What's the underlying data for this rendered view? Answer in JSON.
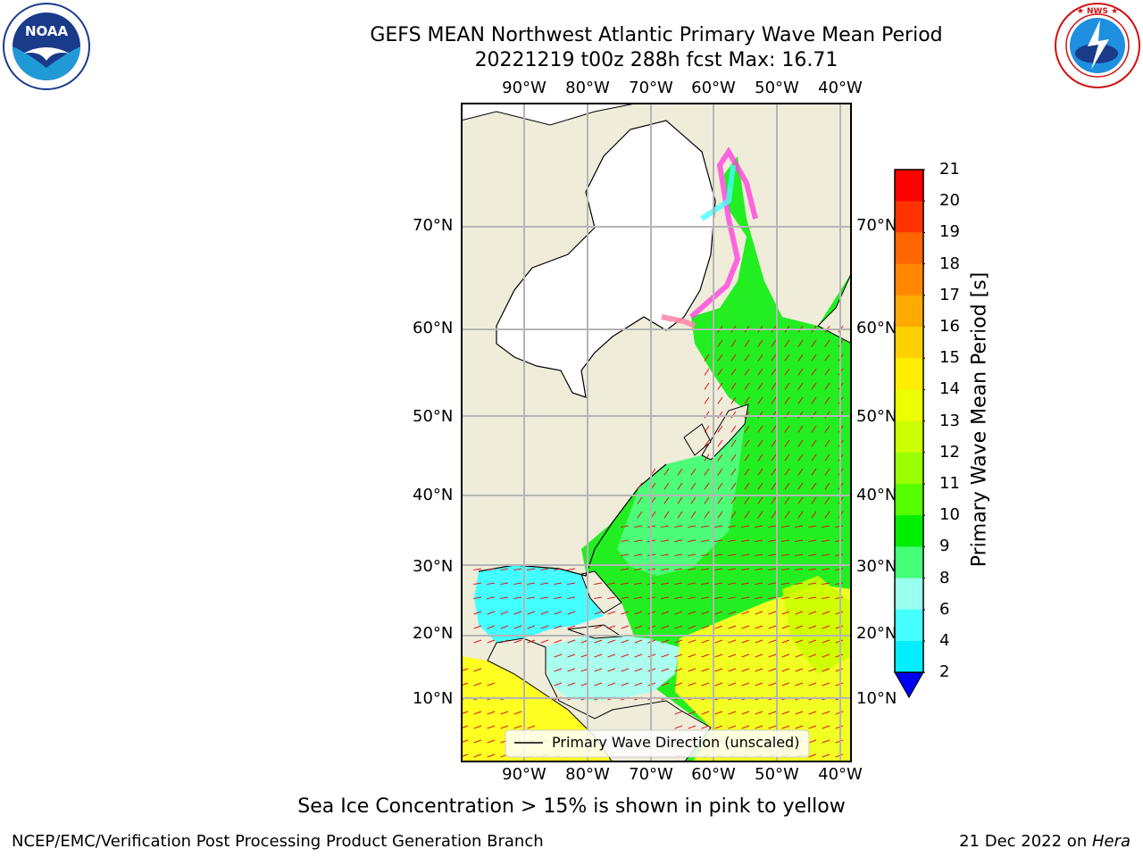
{
  "header": {
    "title_line1": "GEFS MEAN Northwest Atlantic Primary Wave Mean Period",
    "title_line2": "20221219 t00z 288h fcst   Max: 16.71"
  },
  "logos": {
    "left": {
      "text": "NOAA",
      "ring_text": "NATIONAL OCEANIC AND ATMOSPHERIC ADMINISTRATION · U.S. DEPARTMENT OF COMMERCE"
    },
    "right": {
      "ring_text": "NATIONAL WEATHER SERVICE"
    }
  },
  "map": {
    "lon_labels": [
      "90°W",
      "80°W",
      "70°W",
      "60°W",
      "50°W",
      "40°W"
    ],
    "lat_labels": [
      "70°N",
      "60°N",
      "50°N",
      "40°N",
      "30°N",
      "20°N",
      "10°N"
    ],
    "legend_text": "Primary Wave Direction (unscaled)"
  },
  "colorbar": {
    "label": "Primary Wave Mean Period [s]",
    "ticks": [
      "21",
      "20",
      "19",
      "18",
      "17",
      "16",
      "15",
      "14",
      "13",
      "12",
      "11",
      "10",
      "9",
      "8",
      "6",
      "4",
      "2"
    ],
    "colors": [
      "#ff0000",
      "#ff3300",
      "#ff6600",
      "#ff8800",
      "#ffaa00",
      "#ffd000",
      "#ffee00",
      "#eeff00",
      "#ccff00",
      "#99ff00",
      "#55ff00",
      "#00ee00",
      "#44ff77",
      "#99ffee",
      "#44ffff",
      "#00eeff",
      "#0088ff"
    ],
    "extend_color": "#0000ee"
  },
  "footer": {
    "note": "Sea Ice Concentration > 15% is shown in pink to yellow",
    "left": "NCEP/EMC/Verification Post Processing Product Generation Branch",
    "right_date": "21 Dec 2022 on ",
    "right_host": "Hera"
  }
}
